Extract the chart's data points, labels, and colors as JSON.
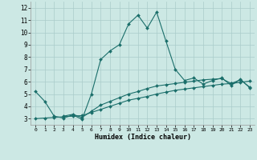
{
  "xlabel": "Humidex (Indice chaleur)",
  "xlim": [
    -0.5,
    23.5
  ],
  "ylim": [
    2.5,
    12.5
  ],
  "yticks": [
    3,
    4,
    5,
    6,
    7,
    8,
    9,
    10,
    11,
    12
  ],
  "xtick_labels": [
    "0",
    "1",
    "2",
    "3",
    "4",
    "5",
    "6",
    "7",
    "8",
    "9",
    "10",
    "11",
    "12",
    "13",
    "14",
    "15",
    "16",
    "17",
    "18",
    "19",
    "20",
    "21",
    "22",
    "23"
  ],
  "xticks": [
    0,
    1,
    2,
    3,
    4,
    5,
    6,
    7,
    8,
    9,
    10,
    11,
    12,
    13,
    14,
    15,
    16,
    17,
    18,
    19,
    20,
    21,
    22,
    23
  ],
  "background_color": "#cce8e4",
  "grid_color": "#aaccca",
  "line_color": "#1a6e6a",
  "line1_x": [
    0,
    1,
    2,
    3,
    4,
    5,
    6,
    7,
    8,
    9,
    10,
    11,
    12,
    13,
    14,
    15,
    16,
    17,
    18,
    19,
    20,
    21,
    22,
    23
  ],
  "line1_y": [
    5.2,
    4.4,
    3.2,
    3.05,
    3.3,
    2.95,
    5.0,
    7.8,
    8.5,
    9.0,
    10.7,
    11.4,
    10.35,
    11.65,
    9.3,
    7.0,
    6.1,
    6.3,
    5.8,
    6.1,
    6.3,
    5.7,
    6.2,
    5.5
  ],
  "line2_x": [
    0,
    1,
    2,
    3,
    4,
    5,
    6,
    7,
    8,
    9,
    10,
    11,
    12,
    13,
    14,
    15,
    16,
    17,
    18,
    19,
    20,
    21,
    22,
    23
  ],
  "line2_y": [
    3.0,
    3.05,
    3.1,
    3.15,
    3.2,
    3.25,
    3.5,
    3.75,
    4.0,
    4.25,
    4.5,
    4.65,
    4.8,
    5.0,
    5.15,
    5.3,
    5.4,
    5.5,
    5.6,
    5.7,
    5.8,
    5.85,
    5.95,
    6.05
  ],
  "line3_x": [
    3,
    4,
    5,
    6,
    7,
    8,
    9,
    10,
    11,
    12,
    13,
    14,
    15,
    16,
    17,
    18,
    19,
    20,
    21,
    22,
    23
  ],
  "line3_y": [
    3.2,
    3.35,
    3.1,
    3.6,
    4.1,
    4.4,
    4.7,
    5.0,
    5.2,
    5.45,
    5.65,
    5.75,
    5.85,
    5.95,
    6.05,
    6.15,
    6.2,
    6.25,
    5.85,
    6.15,
    5.55
  ]
}
